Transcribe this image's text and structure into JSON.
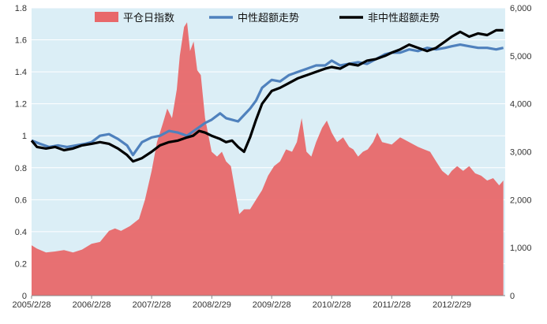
{
  "chart_data": {
    "type": "area+line",
    "title": "",
    "xlabel": "",
    "ylabel": "",
    "legend_position": "top",
    "grid": true,
    "x_ticks": [
      "2005/2/28",
      "2006/2/28",
      "2007/2/28",
      "2008/2/29",
      "2009/2/28",
      "2010/2/28",
      "2011/2/28",
      "2012/2/29"
    ],
    "y_left_ticks": [
      "0",
      "0.2",
      "0.4",
      "0.6",
      "0.8",
      "1",
      "1.2",
      "1.4",
      "1.6",
      "1.8"
    ],
    "y_right_ticks": [
      "0",
      "1,000",
      "2,000",
      "3,000",
      "4,000",
      "5,000",
      "6,000"
    ],
    "ylim_left": [
      0,
      1.8
    ],
    "ylim_right": [
      0,
      6000
    ],
    "series": [
      {
        "name": "平仓日指数",
        "type": "area",
        "axis": "right",
        "color": "#e8686a",
        "points": [
          [
            2005.16,
            1050
          ],
          [
            2005.25,
            980
          ],
          [
            2005.4,
            900
          ],
          [
            2005.55,
            920
          ],
          [
            2005.7,
            950
          ],
          [
            2005.85,
            900
          ],
          [
            2006.0,
            960
          ],
          [
            2006.16,
            1080
          ],
          [
            2006.3,
            1120
          ],
          [
            2006.45,
            1350
          ],
          [
            2006.55,
            1400
          ],
          [
            2006.65,
            1350
          ],
          [
            2006.8,
            1450
          ],
          [
            2006.95,
            1600
          ],
          [
            2007.05,
            2000
          ],
          [
            2007.16,
            2600
          ],
          [
            2007.25,
            3200
          ],
          [
            2007.35,
            3600
          ],
          [
            2007.42,
            3900
          ],
          [
            2007.5,
            3700
          ],
          [
            2007.58,
            4300
          ],
          [
            2007.63,
            5000
          ],
          [
            2007.7,
            5600
          ],
          [
            2007.75,
            5700
          ],
          [
            2007.8,
            5100
          ],
          [
            2007.86,
            5300
          ],
          [
            2007.92,
            4700
          ],
          [
            2007.98,
            4600
          ],
          [
            2008.05,
            3700
          ],
          [
            2008.16,
            3000
          ],
          [
            2008.25,
            2900
          ],
          [
            2008.33,
            3000
          ],
          [
            2008.4,
            2800
          ],
          [
            2008.48,
            2700
          ],
          [
            2008.55,
            2200
          ],
          [
            2008.62,
            1700
          ],
          [
            2008.7,
            1800
          ],
          [
            2008.8,
            1800
          ],
          [
            2008.9,
            2000
          ],
          [
            2009.0,
            2200
          ],
          [
            2009.1,
            2500
          ],
          [
            2009.2,
            2700
          ],
          [
            2009.3,
            2800
          ],
          [
            2009.4,
            3050
          ],
          [
            2009.5,
            3000
          ],
          [
            2009.58,
            3200
          ],
          [
            2009.66,
            3700
          ],
          [
            2009.74,
            3000
          ],
          [
            2009.82,
            2900
          ],
          [
            2009.9,
            3200
          ],
          [
            2010.0,
            3500
          ],
          [
            2010.08,
            3650
          ],
          [
            2010.16,
            3400
          ],
          [
            2010.25,
            3200
          ],
          [
            2010.35,
            3300
          ],
          [
            2010.45,
            3100
          ],
          [
            2010.52,
            3050
          ],
          [
            2010.6,
            2900
          ],
          [
            2010.68,
            3000
          ],
          [
            2010.76,
            3050
          ],
          [
            2010.85,
            3200
          ],
          [
            2010.92,
            3400
          ],
          [
            2011.0,
            3200
          ],
          [
            2011.16,
            3150
          ],
          [
            2011.3,
            3300
          ],
          [
            2011.45,
            3200
          ],
          [
            2011.6,
            3100
          ],
          [
            2011.7,
            3050
          ],
          [
            2011.8,
            3000
          ],
          [
            2011.9,
            2800
          ],
          [
            2012.0,
            2600
          ],
          [
            2012.1,
            2500
          ],
          [
            2012.16,
            2600
          ],
          [
            2012.25,
            2700
          ],
          [
            2012.35,
            2600
          ],
          [
            2012.45,
            2700
          ],
          [
            2012.55,
            2550
          ],
          [
            2012.65,
            2500
          ],
          [
            2012.75,
            2400
          ],
          [
            2012.85,
            2450
          ],
          [
            2012.95,
            2300
          ],
          [
            2013.02,
            2400
          ]
        ]
      },
      {
        "name": "中性超额走势",
        "type": "line",
        "axis": "left",
        "color": "#4f81bd",
        "points": [
          [
            2005.16,
            0.97
          ],
          [
            2005.3,
            0.95
          ],
          [
            2005.45,
            0.93
          ],
          [
            2005.6,
            0.94
          ],
          [
            2005.75,
            0.93
          ],
          [
            2005.9,
            0.94
          ],
          [
            2006.05,
            0.95
          ],
          [
            2006.16,
            0.96
          ],
          [
            2006.3,
            1.0
          ],
          [
            2006.45,
            1.01
          ],
          [
            2006.6,
            0.98
          ],
          [
            2006.75,
            0.94
          ],
          [
            2006.85,
            0.88
          ],
          [
            2007.0,
            0.96
          ],
          [
            2007.16,
            0.99
          ],
          [
            2007.3,
            1.0
          ],
          [
            2007.45,
            1.03
          ],
          [
            2007.6,
            1.02
          ],
          [
            2007.75,
            1.0
          ],
          [
            2007.9,
            1.04
          ],
          [
            2008.05,
            1.08
          ],
          [
            2008.16,
            1.1
          ],
          [
            2008.3,
            1.14
          ],
          [
            2008.4,
            1.11
          ],
          [
            2008.5,
            1.1
          ],
          [
            2008.6,
            1.09
          ],
          [
            2008.7,
            1.13
          ],
          [
            2008.8,
            1.17
          ],
          [
            2008.9,
            1.22
          ],
          [
            2009.0,
            1.3
          ],
          [
            2009.16,
            1.35
          ],
          [
            2009.3,
            1.34
          ],
          [
            2009.45,
            1.38
          ],
          [
            2009.6,
            1.4
          ],
          [
            2009.75,
            1.42
          ],
          [
            2009.9,
            1.44
          ],
          [
            2010.05,
            1.44
          ],
          [
            2010.16,
            1.47
          ],
          [
            2010.3,
            1.44
          ],
          [
            2010.45,
            1.45
          ],
          [
            2010.6,
            1.46
          ],
          [
            2010.75,
            1.45
          ],
          [
            2010.9,
            1.48
          ],
          [
            2011.05,
            1.51
          ],
          [
            2011.16,
            1.52
          ],
          [
            2011.3,
            1.52
          ],
          [
            2011.45,
            1.54
          ],
          [
            2011.6,
            1.53
          ],
          [
            2011.75,
            1.55
          ],
          [
            2011.9,
            1.54
          ],
          [
            2012.05,
            1.55
          ],
          [
            2012.16,
            1.56
          ],
          [
            2012.3,
            1.57
          ],
          [
            2012.45,
            1.56
          ],
          [
            2012.6,
            1.55
          ],
          [
            2012.75,
            1.55
          ],
          [
            2012.9,
            1.54
          ],
          [
            2013.02,
            1.55
          ]
        ]
      },
      {
        "name": "非中性超额走势",
        "type": "line",
        "axis": "left",
        "color": "#000000",
        "points": [
          [
            2005.16,
            0.97
          ],
          [
            2005.25,
            0.93
          ],
          [
            2005.4,
            0.92
          ],
          [
            2005.55,
            0.93
          ],
          [
            2005.7,
            0.91
          ],
          [
            2005.85,
            0.92
          ],
          [
            2006.0,
            0.94
          ],
          [
            2006.16,
            0.95
          ],
          [
            2006.3,
            0.96
          ],
          [
            2006.45,
            0.95
          ],
          [
            2006.6,
            0.92
          ],
          [
            2006.75,
            0.88
          ],
          [
            2006.85,
            0.84
          ],
          [
            2007.0,
            0.86
          ],
          [
            2007.16,
            0.9
          ],
          [
            2007.3,
            0.94
          ],
          [
            2007.45,
            0.96
          ],
          [
            2007.6,
            0.97
          ],
          [
            2007.75,
            0.99
          ],
          [
            2007.85,
            1.0
          ],
          [
            2007.95,
            1.03
          ],
          [
            2008.05,
            1.02
          ],
          [
            2008.16,
            1.0
          ],
          [
            2008.3,
            0.98
          ],
          [
            2008.4,
            0.96
          ],
          [
            2008.5,
            0.97
          ],
          [
            2008.6,
            0.93
          ],
          [
            2008.7,
            0.9
          ],
          [
            2008.8,
            0.99
          ],
          [
            2008.9,
            1.1
          ],
          [
            2009.0,
            1.2
          ],
          [
            2009.16,
            1.28
          ],
          [
            2009.3,
            1.3
          ],
          [
            2009.45,
            1.33
          ],
          [
            2009.6,
            1.36
          ],
          [
            2009.75,
            1.38
          ],
          [
            2009.9,
            1.4
          ],
          [
            2010.05,
            1.42
          ],
          [
            2010.16,
            1.43
          ],
          [
            2010.3,
            1.42
          ],
          [
            2010.45,
            1.45
          ],
          [
            2010.6,
            1.44
          ],
          [
            2010.75,
            1.47
          ],
          [
            2010.9,
            1.48
          ],
          [
            2011.05,
            1.5
          ],
          [
            2011.16,
            1.52
          ],
          [
            2011.3,
            1.54
          ],
          [
            2011.45,
            1.57
          ],
          [
            2011.6,
            1.55
          ],
          [
            2011.75,
            1.53
          ],
          [
            2011.9,
            1.55
          ],
          [
            2012.05,
            1.59
          ],
          [
            2012.16,
            1.62
          ],
          [
            2012.3,
            1.65
          ],
          [
            2012.45,
            1.62
          ],
          [
            2012.6,
            1.64
          ],
          [
            2012.75,
            1.63
          ],
          [
            2012.9,
            1.66
          ],
          [
            2013.02,
            1.66
          ]
        ]
      }
    ]
  }
}
